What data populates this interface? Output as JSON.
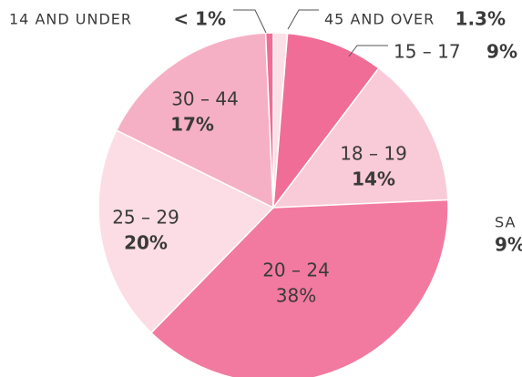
{
  "chart_data": {
    "type": "pie",
    "categories": [
      "45 AND OVER",
      "15 – 17",
      "18 – 19",
      "20 – 24",
      "25 – 29",
      "30 – 44",
      "14 AND UNDER"
    ],
    "values": [
      1.3,
      9,
      14,
      38,
      20,
      17,
      0.7
    ],
    "value_labels": [
      "1.3%",
      "9%",
      "14%",
      "38%",
      "20%",
      "17%",
      "< 1%"
    ],
    "colors": [
      "#fbe0e8",
      "#f06d97",
      "#f9cad8",
      "#f27aa0",
      "#fcdde6",
      "#f6b0c6",
      "#f06d97"
    ],
    "annotations": [
      "SA",
      "9%"
    ]
  }
}
